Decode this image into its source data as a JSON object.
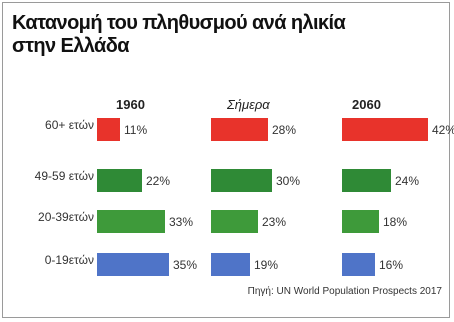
{
  "title_line1": "Κατανομή του πληθυσμού ανά ηλικία",
  "title_line2": "στην Ελλάδα",
  "source": "Πηγή: UN World Population Prospects 2017",
  "colors": {
    "60+ ετών": "#e8332b",
    "49-59 ετών": "#2f8a36",
    "20-39 ετών": "#3e9a3a",
    "0-19 ετών": "#4f74c8"
  },
  "chart_data": {
    "type": "bar",
    "orientation": "horizontal",
    "categories": [
      "60+ ετών",
      "49-59 ετών",
      "20-39ετών",
      "0-19ετών"
    ],
    "series": [
      {
        "name": "1960",
        "values": [
          11,
          22,
          33,
          35
        ]
      },
      {
        "name": "Σήμερα",
        "values": [
          28,
          30,
          23,
          19
        ]
      },
      {
        "name": "2060",
        "values": [
          42,
          24,
          18,
          16
        ]
      }
    ],
    "value_suffix": "%",
    "xlim": [
      0,
      42
    ]
  }
}
